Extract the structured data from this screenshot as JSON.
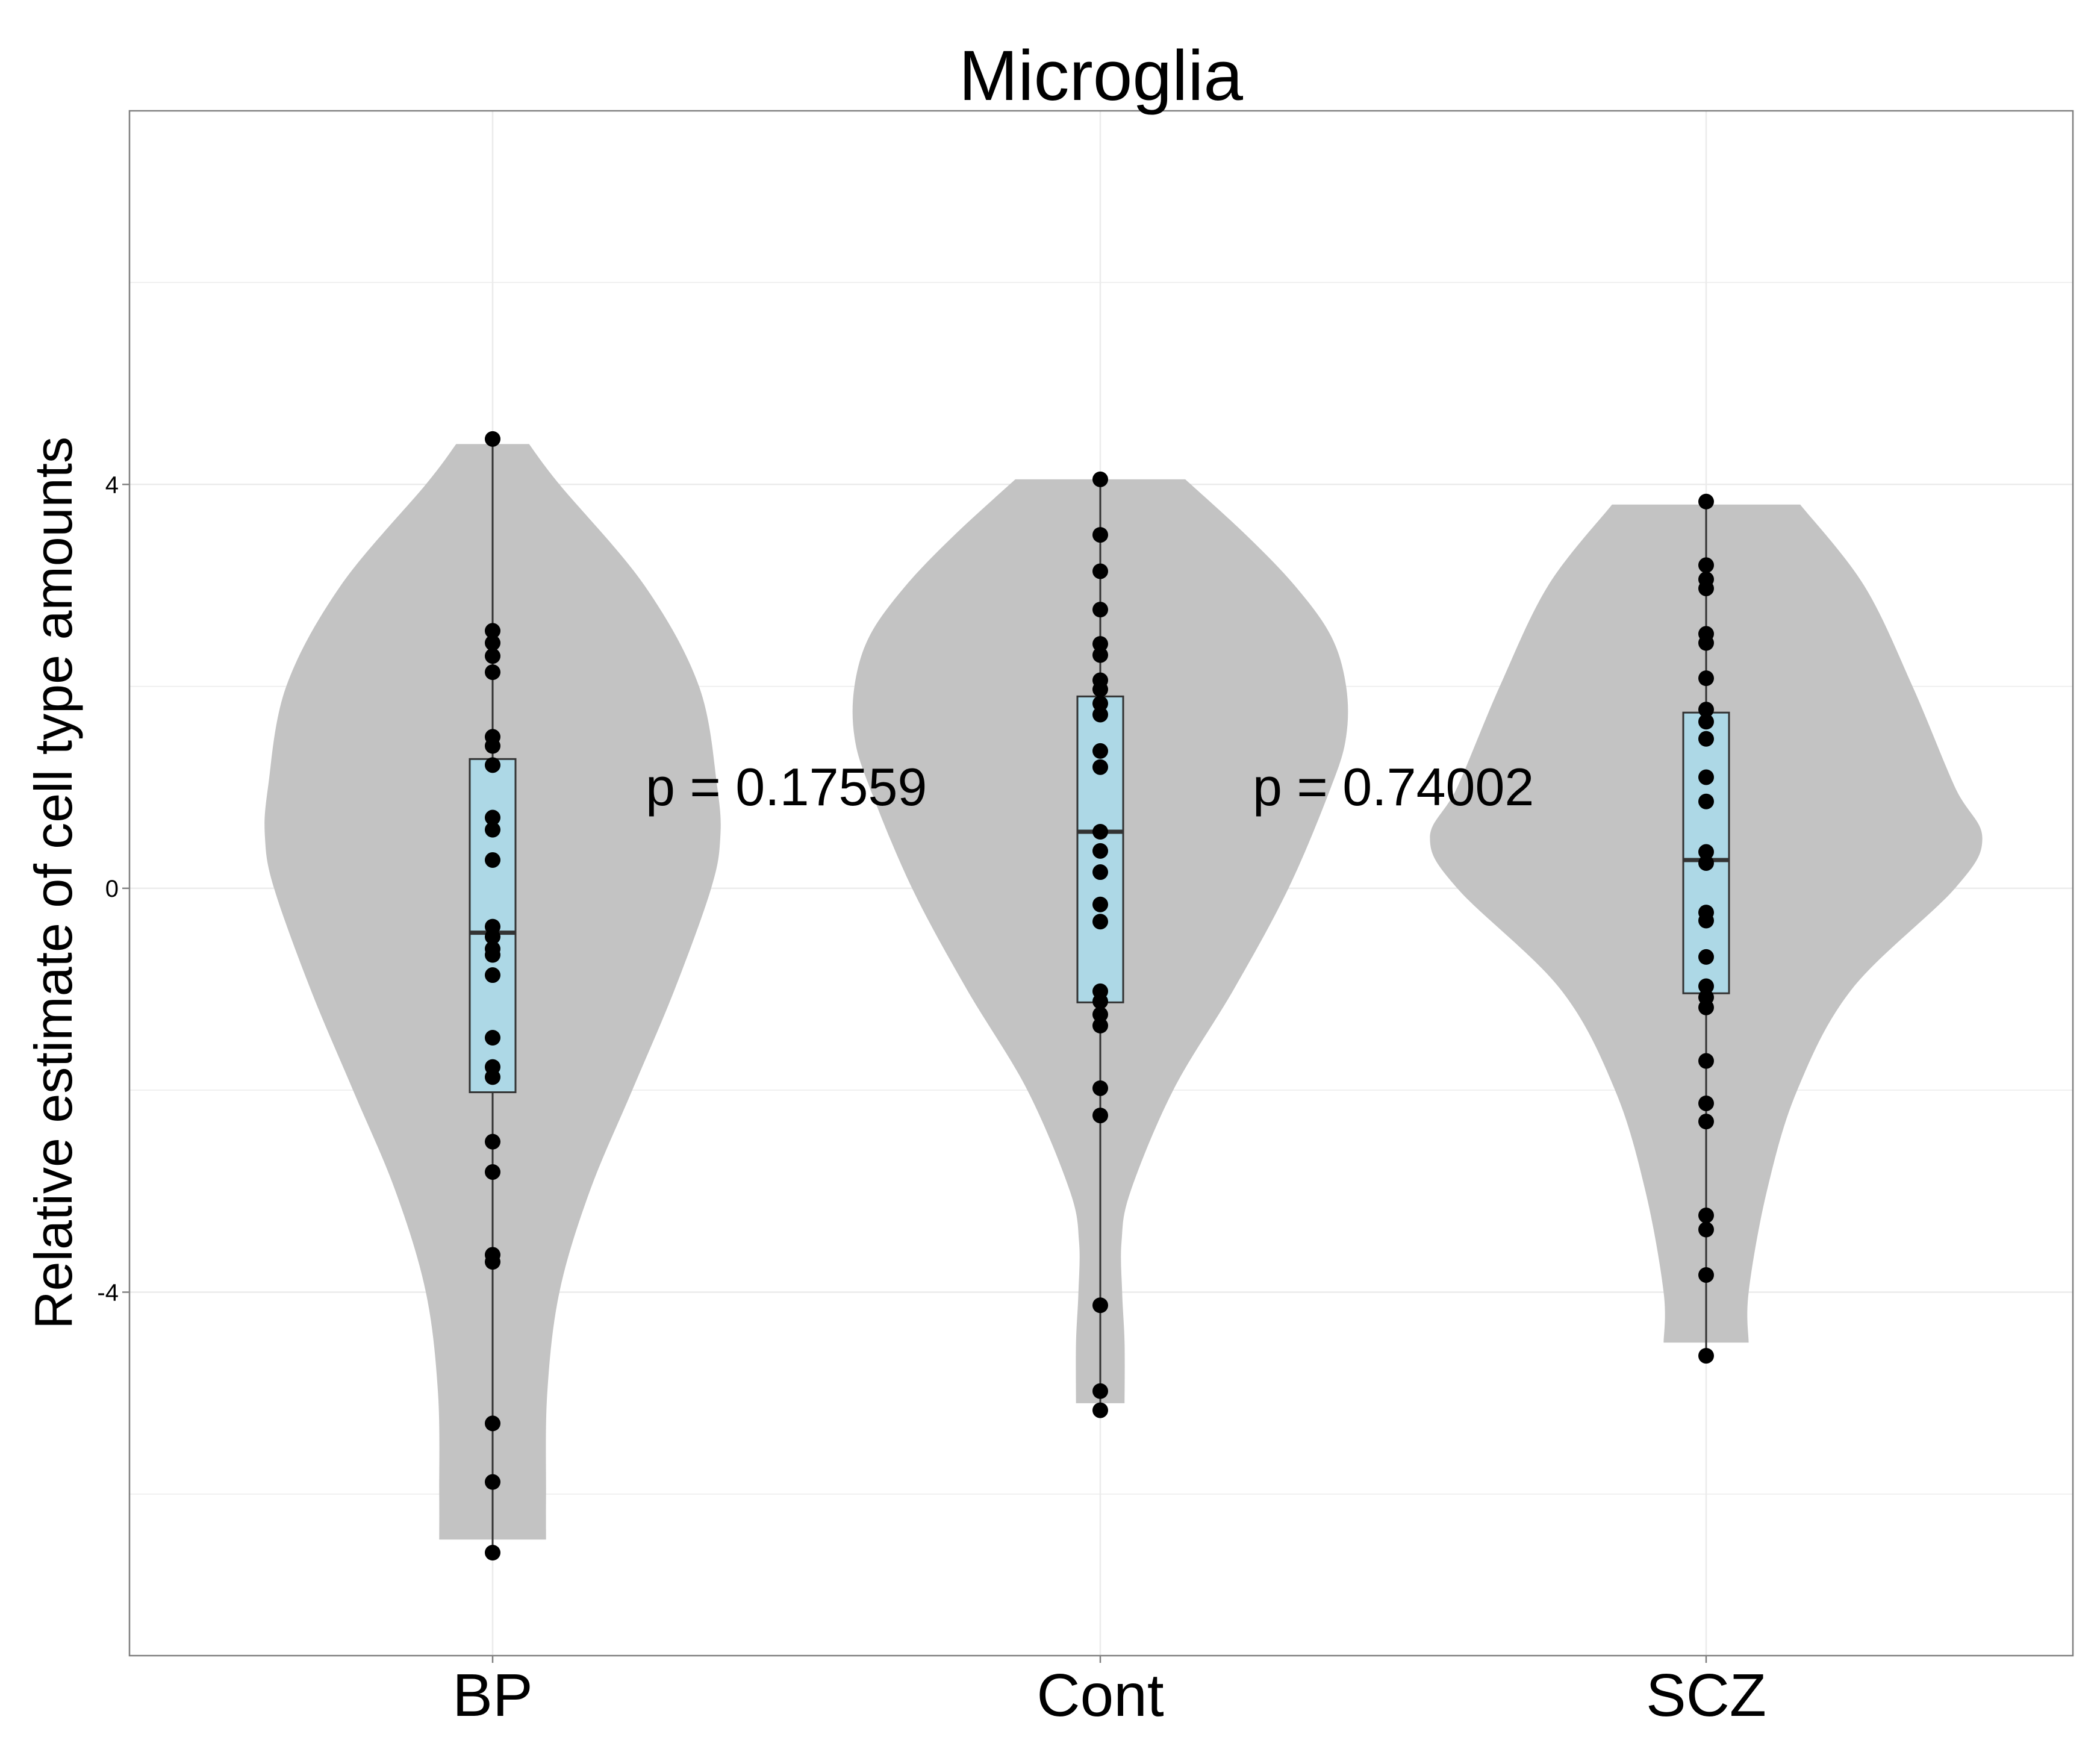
{
  "chart_data": {
    "type": "violin",
    "title": "Microglia",
    "xlabel": "",
    "ylabel": "Relative estimate of cell type amounts",
    "categories": [
      "BP",
      "Cont",
      "SCZ"
    ],
    "ylim": [
      -7.6,
      7.7
    ],
    "yticks": [
      -4,
      0,
      4
    ],
    "ytick_labels": [
      "-4",
      "0",
      "4"
    ],
    "grid": true,
    "colors": {
      "violin": "#c3c3c3",
      "box": "#add8e6",
      "point": "#000000",
      "grid": "#ebebeb",
      "panel_border": "#808080"
    },
    "groups": [
      {
        "name": "BP",
        "box": {
          "q1": -2.02,
          "median": -0.44,
          "q3": 1.28,
          "whisker_low": -6.58,
          "whisker_high": 4.45
        },
        "points": [
          4.45,
          2.55,
          2.43,
          2.3,
          2.14,
          1.5,
          1.41,
          1.22,
          0.7,
          0.58,
          0.28,
          -0.38,
          -0.48,
          -0.6,
          -0.66,
          -0.86,
          -1.48,
          -1.77,
          -1.87,
          -2.51,
          -2.81,
          -3.63,
          -3.7,
          -5.3,
          -5.88,
          -6.58
        ],
        "violin_width": [
          [
            4.4,
            0.06
          ],
          [
            4.0,
            0.11
          ],
          [
            3.0,
            0.25
          ],
          [
            2.0,
            0.34
          ],
          [
            1.0,
            0.37
          ],
          [
            0.5,
            0.375
          ],
          [
            0.0,
            0.36
          ],
          [
            -1.0,
            0.3
          ],
          [
            -2.0,
            0.23
          ],
          [
            -3.0,
            0.16
          ],
          [
            -4.0,
            0.11
          ],
          [
            -5.0,
            0.09
          ],
          [
            -6.0,
            0.088
          ],
          [
            -6.45,
            0.088
          ]
        ]
      },
      {
        "name": "Cont",
        "box": {
          "q1": -1.13,
          "median": 0.56,
          "q3": 1.9,
          "whisker_low": -5.17,
          "whisker_high": 4.05
        },
        "points": [
          4.05,
          3.5,
          3.14,
          2.76,
          2.42,
          2.31,
          2.06,
          1.97,
          1.83,
          1.72,
          1.36,
          1.2,
          0.56,
          0.37,
          0.16,
          -0.16,
          -0.33,
          -1.02,
          -1.12,
          -1.25,
          -1.36,
          -1.98,
          -2.25,
          -4.13,
          -4.98,
          -5.17
        ],
        "violin_width": [
          [
            4.05,
            0.14
          ],
          [
            3.5,
            0.24
          ],
          [
            3.0,
            0.32
          ],
          [
            2.5,
            0.38
          ],
          [
            2.0,
            0.405
          ],
          [
            1.5,
            0.405
          ],
          [
            1.0,
            0.38
          ],
          [
            0.0,
            0.31
          ],
          [
            -1.0,
            0.22
          ],
          [
            -2.0,
            0.12
          ],
          [
            -3.0,
            0.05
          ],
          [
            -3.5,
            0.035
          ],
          [
            -4.0,
            0.036
          ],
          [
            -4.5,
            0.04
          ],
          [
            -5.1,
            0.04
          ]
        ]
      },
      {
        "name": "SCZ",
        "box": {
          "q1": -1.04,
          "median": 0.28,
          "q3": 1.74,
          "whisker_low": -4.6,
          "whisker_high": 3.83
        },
        "points": [
          3.83,
          3.2,
          3.06,
          2.97,
          2.52,
          2.43,
          2.08,
          1.77,
          1.65,
          1.48,
          1.1,
          0.86,
          0.36,
          0.25,
          -0.24,
          -0.32,
          -0.68,
          -0.97,
          -1.08,
          -1.18,
          -1.71,
          -2.13,
          -2.31,
          -3.24,
          -3.38,
          -3.83,
          -4.63
        ],
        "violin_width": [
          [
            3.8,
            0.155
          ],
          [
            3.0,
            0.26
          ],
          [
            2.0,
            0.34
          ],
          [
            1.0,
            0.41
          ],
          [
            0.5,
            0.455
          ],
          [
            0.0,
            0.41
          ],
          [
            -1.0,
            0.24
          ],
          [
            -2.0,
            0.15
          ],
          [
            -3.0,
            0.1
          ],
          [
            -4.0,
            0.07
          ],
          [
            -4.5,
            0.07
          ]
        ]
      }
    ],
    "annotations": [
      "p = 0.17559",
      "p = 0.74002"
    ]
  }
}
